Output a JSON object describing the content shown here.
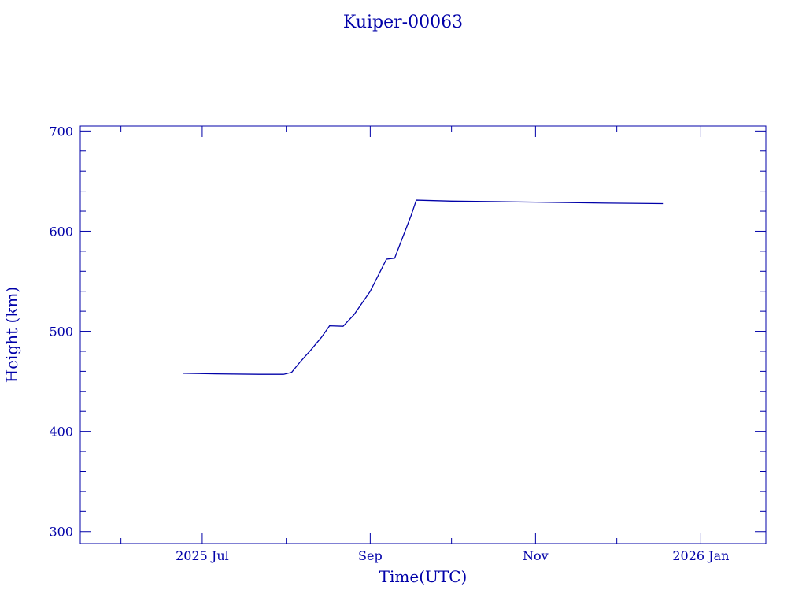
{
  "chart_data": {
    "type": "line",
    "title": "Kuiper-00063",
    "xlabel": "Time(UTC)",
    "ylabel": "Height (km)",
    "xlim": [
      "2025-05-17",
      "2026-01-25"
    ],
    "ylim": [
      288,
      705
    ],
    "x_major_ticks": [
      {
        "date": "2025-07-01",
        "label": "2025 Jul"
      },
      {
        "date": "2025-09-01",
        "label": "Sep"
      },
      {
        "date": "2025-11-01",
        "label": "Nov"
      },
      {
        "date": "2026-01-01",
        "label": "2026 Jan"
      }
    ],
    "x_minor_ticks": [
      "2025-06-01",
      "2025-08-01",
      "2025-10-01",
      "2025-12-01"
    ],
    "y_major_ticks": [
      300,
      400,
      500,
      600,
      700
    ],
    "y_minor_step": 20,
    "grid": false,
    "color": "#0000a8",
    "series": [
      {
        "x": [
          "2025-06-24",
          "2025-07-06",
          "2025-07-22",
          "2025-07-31",
          "2025-08-03",
          "2025-08-06",
          "2025-08-10",
          "2025-08-14",
          "2025-08-17",
          "2025-08-22",
          "2025-08-26",
          "2025-09-01",
          "2025-09-07",
          "2025-09-10",
          "2025-09-12",
          "2025-09-16",
          "2025-09-18",
          "2025-10-01",
          "2025-11-01",
          "2025-11-28",
          "2025-12-18"
        ],
        "y": [
          458,
          457.5,
          457,
          457,
          459,
          469,
          481,
          494,
          505.5,
          505,
          516.5,
          540,
          572,
          573,
          587,
          615,
          631,
          630,
          629,
          628,
          627.5
        ]
      }
    ]
  }
}
